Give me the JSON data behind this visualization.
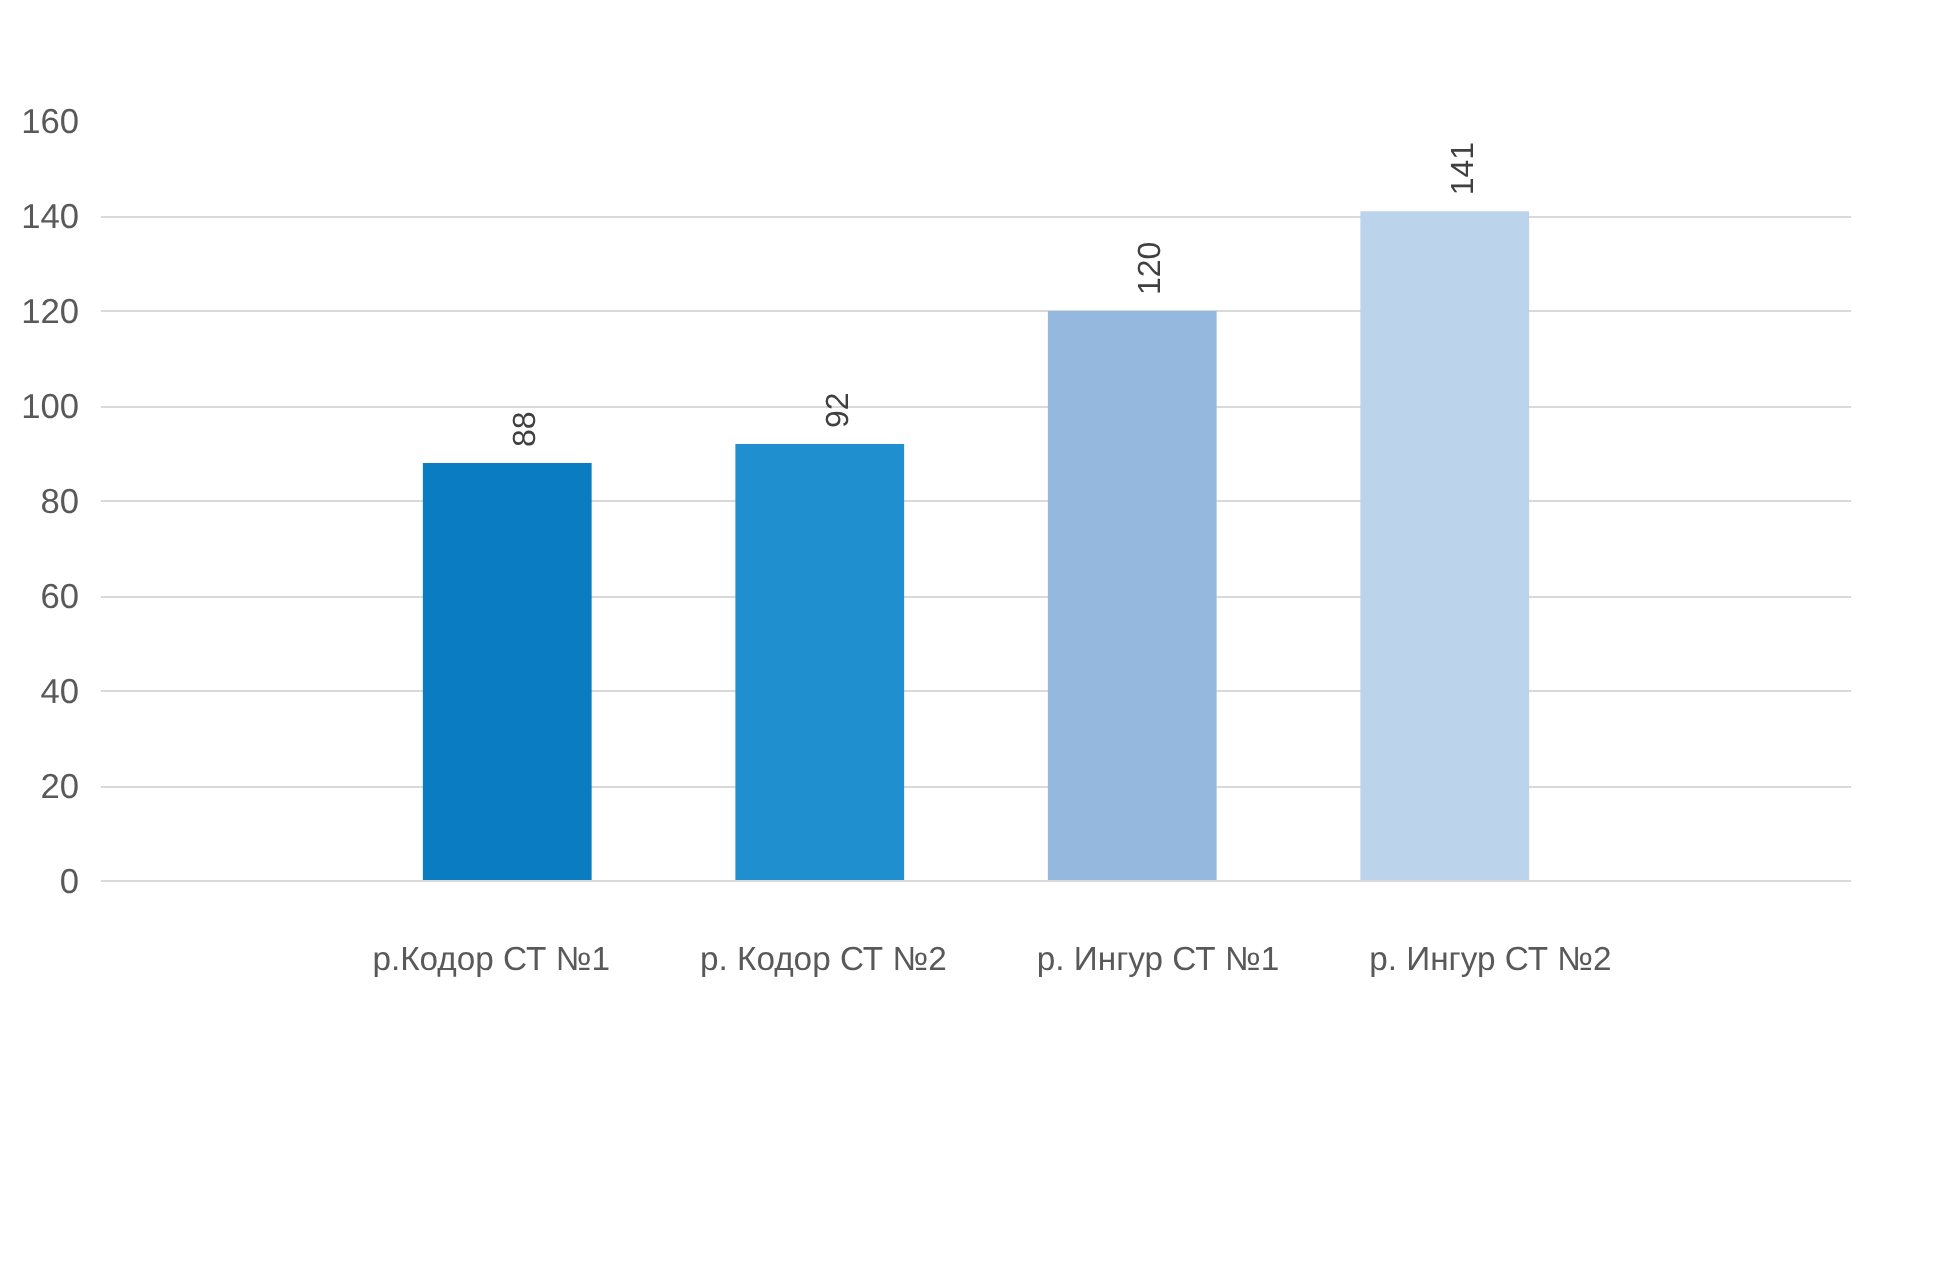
{
  "chart_data": {
    "type": "bar",
    "categories": [
      null
    ],
    "series": [
      {
        "name": "р.Кодор СТ №1",
        "color": "#0a7cc1",
        "values": [
          88
        ]
      },
      {
        "name": "р. Кодор СТ №2",
        "color": "#1f8fd0",
        "values": [
          92
        ]
      },
      {
        "name": "р. Ингур СТ №1",
        "color": "#95b8df",
        "values": [
          120
        ]
      },
      {
        "name": "р. Ингур СТ №2",
        "color": "#bcd3ec",
        "values": [
          141
        ]
      }
    ],
    "ylim": [
      0,
      160
    ],
    "yticks": [
      0,
      20,
      40,
      60,
      80,
      100,
      120,
      140,
      160
    ],
    "grid": "y",
    "legend": "bottom",
    "data_labels": true
  }
}
